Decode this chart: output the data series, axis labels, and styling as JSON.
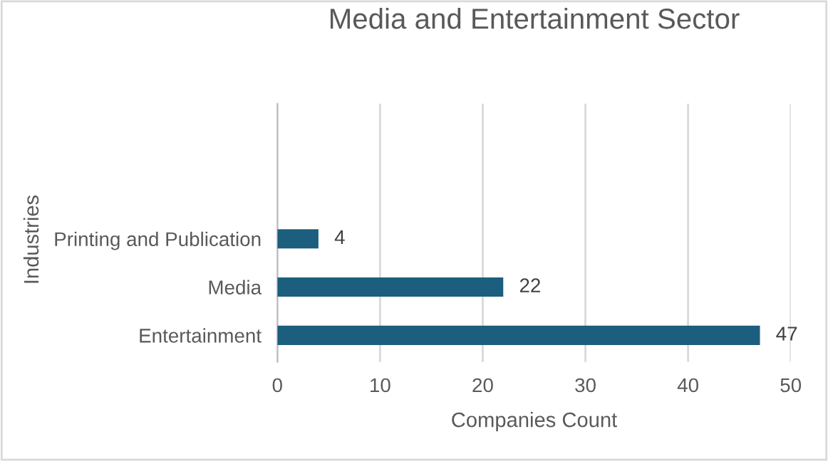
{
  "chart_data": {
    "type": "bar",
    "orientation": "horizontal",
    "title": "Media and Entertainment Sector",
    "xlabel": "Companies Count",
    "ylabel": "Industries",
    "categories": [
      "Printing and Publication",
      "Media",
      "Entertainment"
    ],
    "values": [
      4,
      22,
      47
    ],
    "color": "#1b5e7e",
    "xlim": [
      0,
      50
    ],
    "xticks": [
      0,
      10,
      20,
      30,
      40,
      50
    ],
    "grid": "x",
    "data_labels": true
  }
}
